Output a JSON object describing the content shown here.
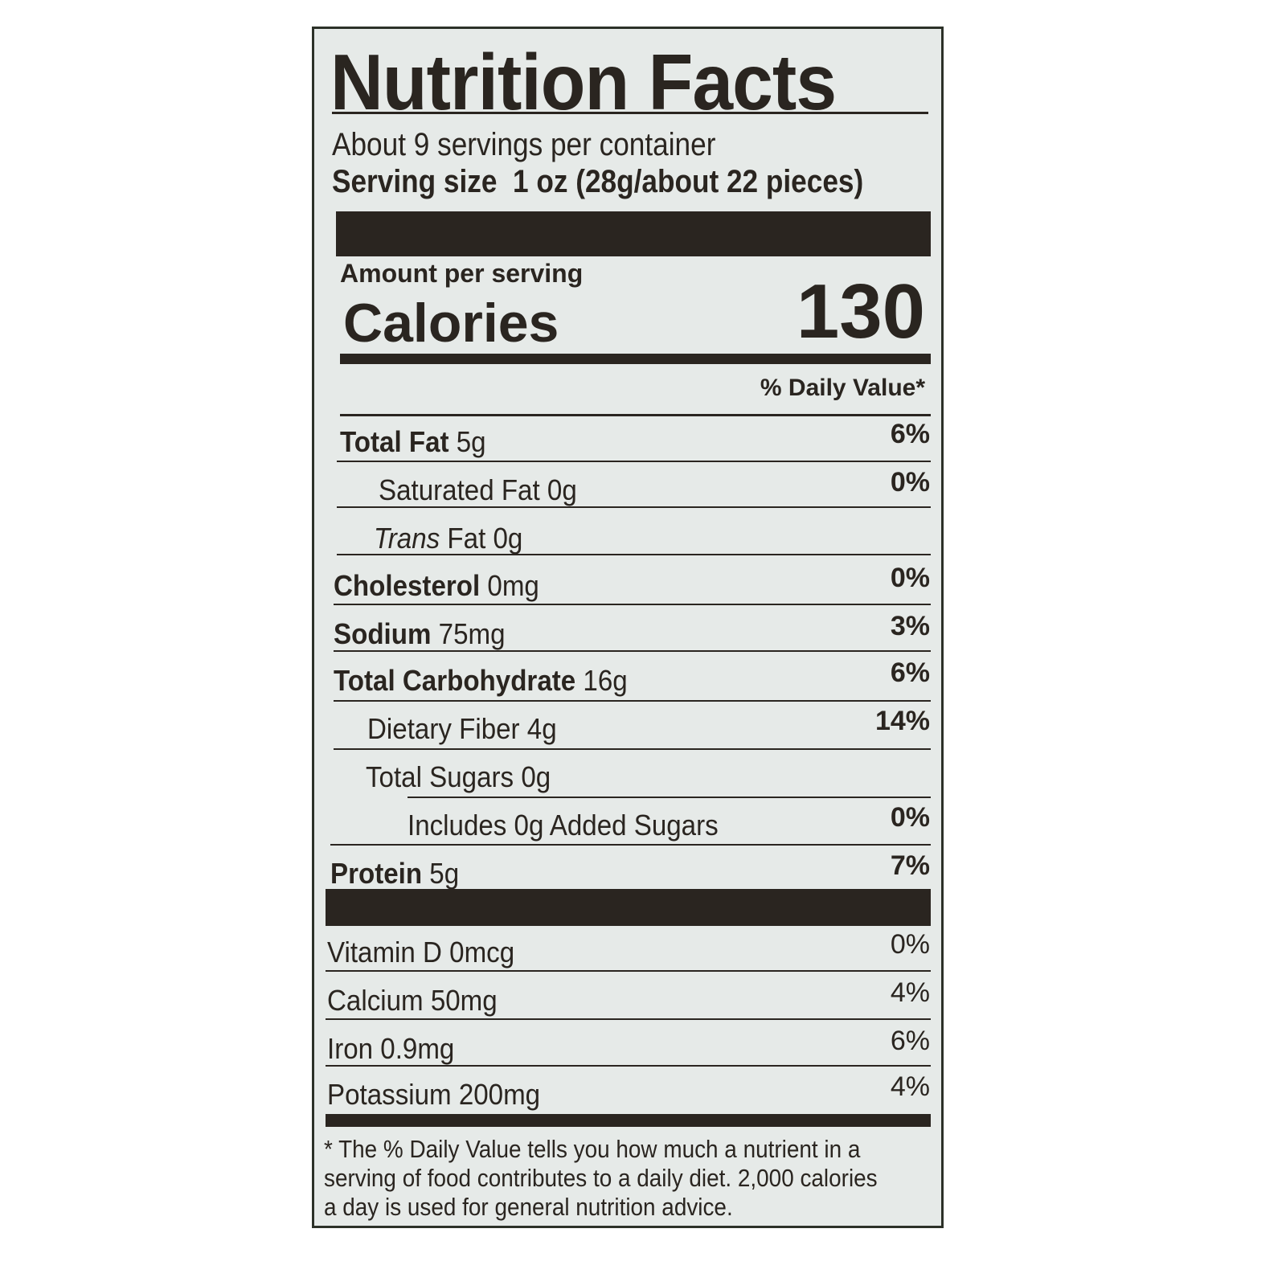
{
  "label": {
    "title": "Nutrition Facts",
    "servings_per_container": "About 9 servings per container",
    "serving_size_label": "Serving size",
    "serving_size_value": "1 oz (28g/about 22 pieces)",
    "amount_per_serving": "Amount per serving",
    "calories_label": "Calories",
    "calories_value": "130",
    "daily_value_header": "% Daily Value*",
    "nutrients": [
      {
        "name": "Total Fat",
        "amount": "5g",
        "dv": "6%"
      },
      {
        "name": "Saturated Fat",
        "amount": "0g",
        "dv": "0%"
      },
      {
        "name": "Trans",
        "amount": "Fat 0g",
        "dv": ""
      },
      {
        "name": "Cholesterol",
        "amount": "0mg",
        "dv": "0%"
      },
      {
        "name": "Sodium",
        "amount": "75mg",
        "dv": "3%"
      },
      {
        "name": "Total Carbohydrate",
        "amount": "16g",
        "dv": "6%"
      },
      {
        "name": "Dietary Fiber",
        "amount": "4g",
        "dv": "14%"
      },
      {
        "name": "Total Sugars",
        "amount": "0g",
        "dv": ""
      },
      {
        "name": "Includes 0g Added Sugars",
        "amount": "",
        "dv": "0%"
      },
      {
        "name": "Protein",
        "amount": "5g",
        "dv": "7%"
      }
    ],
    "vitamins": [
      {
        "name": "Vitamin D 0mcg",
        "dv": "0%"
      },
      {
        "name": "Calcium 50mg",
        "dv": "4%"
      },
      {
        "name": "Iron 0.9mg",
        "dv": "6%"
      },
      {
        "name": "Potassium 200mg",
        "dv": "4%"
      }
    ],
    "footnote": [
      "* The % Daily Value tells you how much a nutrient in a",
      "serving of food contributes to a daily diet. 2,000 calories",
      "a day is used for general nutrition advice."
    ]
  }
}
